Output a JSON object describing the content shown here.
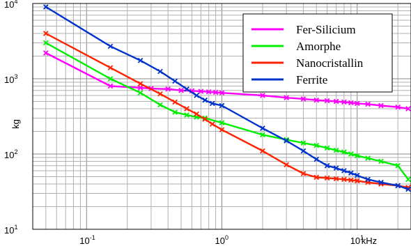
{
  "chart_data": {
    "type": "line",
    "title": "",
    "xlabel": "kHz",
    "ylabel": "kg",
    "xscale": "log",
    "yscale": "log",
    "xlim": [
      0.04,
      25
    ],
    "ylim": [
      10,
      10000
    ],
    "grid": true,
    "legend_position": "top-right",
    "y_ticks": [
      {
        "value": 10,
        "base": "10",
        "exp": "1"
      },
      {
        "value": 100,
        "base": "10",
        "exp": "2"
      },
      {
        "value": 1000,
        "base": "10",
        "exp": "3"
      },
      {
        "value": 10000,
        "base": "10",
        "exp": "4"
      }
    ],
    "x_ticks": [
      {
        "value": 0.1,
        "base": "10",
        "exp": "-1"
      },
      {
        "value": 1,
        "base": "10",
        "exp": "0"
      },
      {
        "value": 10,
        "base": "10",
        "exp": "1"
      }
    ],
    "x_unit_tick": {
      "value": 30,
      "label": "kHz"
    },
    "series": [
      {
        "name": "Fer-Silicium",
        "color": "#ff00ff",
        "points": [
          [
            0.05,
            2200
          ],
          [
            0.15,
            800
          ],
          [
            0.25,
            760
          ],
          [
            0.3,
            740
          ],
          [
            0.4,
            730
          ],
          [
            0.5,
            700
          ],
          [
            0.6,
            690
          ],
          [
            0.7,
            680
          ],
          [
            0.8,
            670
          ],
          [
            0.9,
            660
          ],
          [
            1,
            650
          ],
          [
            2,
            600
          ],
          [
            3,
            560
          ],
          [
            4,
            540
          ],
          [
            5,
            520
          ],
          [
            6,
            510
          ],
          [
            7,
            500
          ],
          [
            8,
            490
          ],
          [
            9,
            480
          ],
          [
            10,
            470
          ],
          [
            12,
            460
          ],
          [
            15,
            440
          ],
          [
            20,
            420
          ],
          [
            30,
            400
          ]
        ]
      },
      {
        "name": "Amorphe",
        "color": "#00ee00",
        "points": [
          [
            0.05,
            3000
          ],
          [
            0.15,
            1000
          ],
          [
            0.25,
            650
          ],
          [
            0.35,
            450
          ],
          [
            0.45,
            360
          ],
          [
            0.55,
            330
          ],
          [
            0.65,
            310
          ],
          [
            0.75,
            300
          ],
          [
            1,
            260
          ],
          [
            2,
            180
          ],
          [
            3,
            155
          ],
          [
            4,
            140
          ],
          [
            5,
            130
          ],
          [
            6,
            120
          ],
          [
            7,
            112
          ],
          [
            8,
            106
          ],
          [
            9,
            100
          ],
          [
            10,
            95
          ],
          [
            12,
            88
          ],
          [
            15,
            80
          ],
          [
            20,
            70
          ],
          [
            30,
            46
          ]
        ]
      },
      {
        "name": "Nanocristallin",
        "color": "#ff2200",
        "points": [
          [
            0.05,
            4000
          ],
          [
            0.15,
            1400
          ],
          [
            0.25,
            860
          ],
          [
            0.35,
            630
          ],
          [
            0.45,
            490
          ],
          [
            0.55,
            400
          ],
          [
            0.65,
            340
          ],
          [
            0.75,
            290
          ],
          [
            0.85,
            250
          ],
          [
            1,
            210
          ],
          [
            2,
            110
          ],
          [
            3,
            72
          ],
          [
            4,
            55
          ],
          [
            5,
            49
          ],
          [
            6,
            48
          ],
          [
            7,
            47
          ],
          [
            8,
            46
          ],
          [
            9,
            45
          ],
          [
            10,
            44
          ],
          [
            12,
            42
          ],
          [
            15,
            40
          ],
          [
            20,
            38
          ],
          [
            30,
            36
          ]
        ]
      },
      {
        "name": "Ferrite",
        "color": "#0033cc",
        "points": [
          [
            0.05,
            9000
          ],
          [
            0.15,
            2700
          ],
          [
            0.25,
            1750
          ],
          [
            0.35,
            1250
          ],
          [
            0.45,
            930
          ],
          [
            0.55,
            730
          ],
          [
            0.65,
            600
          ],
          [
            0.75,
            520
          ],
          [
            0.85,
            470
          ],
          [
            1,
            440
          ],
          [
            2,
            220
          ],
          [
            3,
            150
          ],
          [
            4,
            110
          ],
          [
            5,
            85
          ],
          [
            6,
            70
          ],
          [
            7,
            65
          ],
          [
            8,
            60
          ],
          [
            9,
            56
          ],
          [
            10,
            52
          ],
          [
            12,
            46
          ],
          [
            15,
            42
          ],
          [
            20,
            38
          ],
          [
            30,
            34
          ]
        ]
      }
    ]
  }
}
